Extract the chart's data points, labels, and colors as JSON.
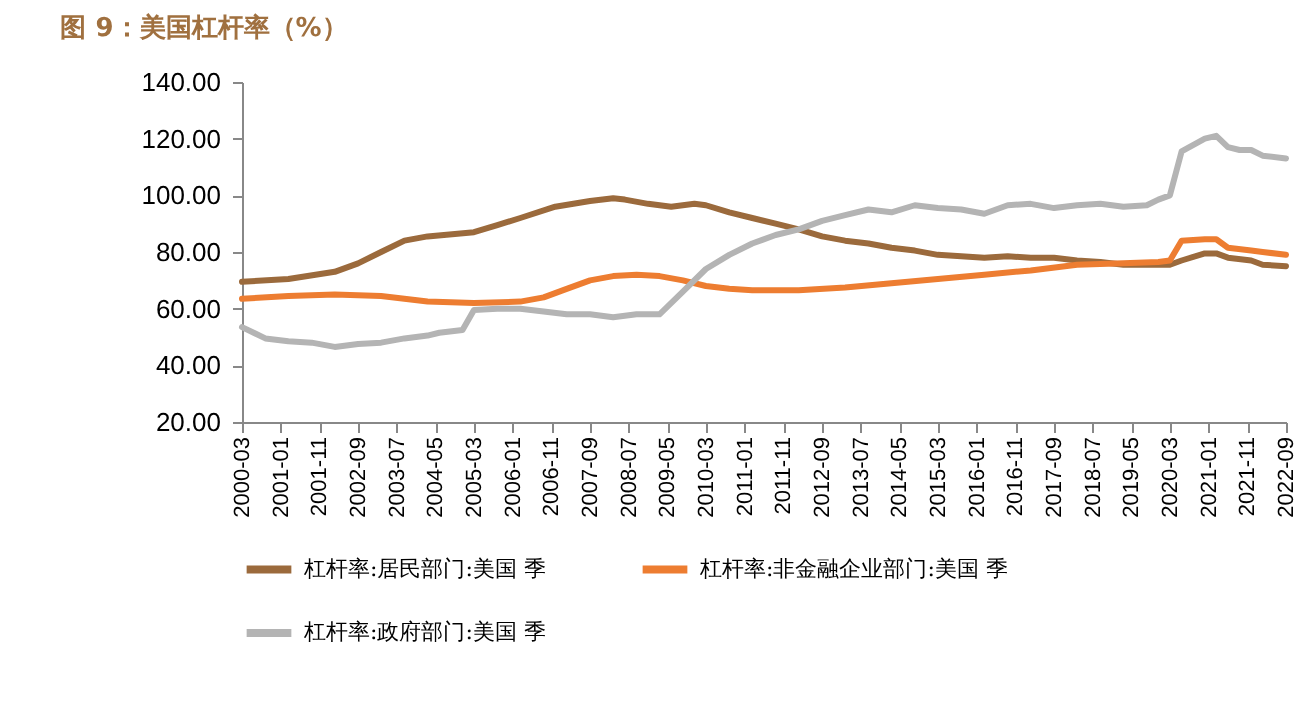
{
  "chart_data": {
    "type": "line",
    "title": "图 9：美国杠杆率（%）",
    "series": [
      {
        "name": "杠杆率:居民部门:美国 季",
        "color": "#9b6a3c",
        "x": [
          "2000-03",
          "2001-03",
          "2002-03",
          "2002-09",
          "2003-03",
          "2003-09",
          "2004-03",
          "2005-03",
          "2005-09",
          "2006-03",
          "2006-12",
          "2007-09",
          "2008-03",
          "2008-06",
          "2008-12",
          "2009-06",
          "2009-12",
          "2010-03",
          "2010-09",
          "2011-03",
          "2011-09",
          "2012-03",
          "2012-09",
          "2013-03",
          "2013-09",
          "2014-03",
          "2014-09",
          "2015-03",
          "2015-09",
          "2016-03",
          "2016-09",
          "2017-03",
          "2017-09",
          "2018-03",
          "2018-09",
          "2019-03",
          "2019-09",
          "2020-03",
          "2020-06",
          "2020-12",
          "2021-03",
          "2021-06",
          "2021-12",
          "2022-03",
          "2022-09"
        ],
        "values": [
          69.5,
          70.5,
          73,
          76,
          80,
          84,
          85.5,
          87,
          89.5,
          92,
          96,
          98,
          99,
          98.5,
          97,
          96,
          97,
          96.5,
          94,
          92,
          90,
          88,
          85.5,
          84,
          83,
          81.5,
          80.5,
          79,
          78.5,
          78,
          78.5,
          78,
          78,
          77,
          76.5,
          75.5,
          75.5,
          75.5,
          77,
          79.5,
          79.5,
          78,
          77,
          75.5,
          75
        ]
      },
      {
        "name": "杠杆率:非金融企业部门:美国 季",
        "color": "#ed7d31",
        "x": [
          "2000-03",
          "2001-03",
          "2002-03",
          "2003-03",
          "2004-03",
          "2005-03",
          "2006-03",
          "2006-09",
          "2007-03",
          "2007-09",
          "2008-03",
          "2008-09",
          "2009-03",
          "2009-09",
          "2010-03",
          "2010-09",
          "2011-03",
          "2012-03",
          "2013-03",
          "2014-03",
          "2015-03",
          "2016-03",
          "2017-03",
          "2018-03",
          "2019-03",
          "2019-12",
          "2020-03",
          "2020-06",
          "2020-12",
          "2021-03",
          "2021-06",
          "2021-12",
          "2022-03",
          "2022-09"
        ],
        "values": [
          63.5,
          64.5,
          65,
          64.5,
          62.5,
          62,
          62.5,
          64,
          67,
          70,
          71.5,
          72,
          71.5,
          70,
          68,
          67,
          66.5,
          66.5,
          67.5,
          69,
          70.5,
          72,
          73.5,
          75.5,
          76,
          76.5,
          77,
          84,
          84.5,
          84.5,
          81.5,
          80.5,
          80,
          79
        ]
      },
      {
        "name": "杠杆率:政府部门:美国 季",
        "color": "#b4b4b4",
        "x": [
          "2000-03",
          "2000-09",
          "2001-03",
          "2001-09",
          "2002-03",
          "2002-09",
          "2003-03",
          "2003-09",
          "2004-03",
          "2004-06",
          "2004-12",
          "2005-03",
          "2005-09",
          "2006-03",
          "2006-09",
          "2007-03",
          "2007-09",
          "2008-03",
          "2008-09",
          "2009-03",
          "2009-09",
          "2010-03",
          "2010-09",
          "2011-03",
          "2011-09",
          "2012-03",
          "2012-09",
          "2013-03",
          "2013-09",
          "2014-03",
          "2014-09",
          "2015-03",
          "2015-09",
          "2016-03",
          "2016-09",
          "2017-03",
          "2017-09",
          "2018-03",
          "2018-09",
          "2019-03",
          "2019-09",
          "2019-12",
          "2020-03",
          "2020-06",
          "2020-12",
          "2021-03",
          "2021-06",
          "2021-09",
          "2021-12",
          "2022-03",
          "2022-09"
        ],
        "values": [
          53.5,
          49.5,
          48.5,
          48,
          46.5,
          47.5,
          48,
          49.5,
          50.5,
          51.5,
          52.5,
          59.5,
          60,
          60,
          59,
          58,
          58,
          57,
          58,
          58,
          66,
          74,
          79,
          83,
          86,
          88,
          91,
          93,
          95,
          94,
          96.5,
          95.5,
          95,
          93.5,
          96.5,
          97,
          95.5,
          96.5,
          97,
          96,
          96.5,
          98.5,
          100,
          115.5,
          120,
          121,
          117,
          116,
          116,
          114,
          113
        ]
      }
    ],
    "xlim": [
      "2000-03",
      "2022-09"
    ],
    "xticks": [
      "2000-03",
      "2001-01",
      "2001-11",
      "2002-09",
      "2003-07",
      "2004-05",
      "2005-03",
      "2006-01",
      "2006-11",
      "2007-09",
      "2008-07",
      "2009-05",
      "2010-03",
      "2011-01",
      "2011-11",
      "2012-09",
      "2013-07",
      "2014-05",
      "2015-03",
      "2016-01",
      "2016-11",
      "2017-09",
      "2018-07",
      "2019-05",
      "2020-03",
      "2021-01",
      "2021-11",
      "2022-09"
    ],
    "ylim": [
      20,
      140
    ],
    "yticks": [
      {
        "value": 20,
        "label": "20.00"
      },
      {
        "value": 40,
        "label": "40.00"
      },
      {
        "value": 60,
        "label": "60.00"
      },
      {
        "value": 80,
        "label": "80.00"
      },
      {
        "value": 100,
        "label": "100.00"
      },
      {
        "value": 120,
        "label": "120.00"
      },
      {
        "value": 140,
        "label": "140.00"
      }
    ],
    "grid": false,
    "legend": "bottom",
    "marker": "none",
    "line_style": "solid"
  }
}
